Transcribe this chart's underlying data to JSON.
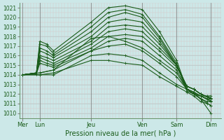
{
  "xlabel": "Pression niveau de la mer( hPa )",
  "bg_color": "#cce8e8",
  "line_color": "#1a5c1a",
  "ylim": [
    1009.5,
    1021.5
  ],
  "yticks": [
    1010,
    1011,
    1012,
    1013,
    1014,
    1015,
    1016,
    1017,
    1018,
    1019,
    1020,
    1021
  ],
  "day_labels": [
    "Mer",
    "Lun",
    "Jeu",
    "Ven",
    "Sam",
    "Dim"
  ],
  "day_positions": [
    0,
    0.5,
    2.0,
    3.5,
    4.5,
    5.5
  ],
  "xlim": [
    -0.1,
    5.8
  ],
  "lines": [
    {
      "x": [
        0.0,
        0.4,
        0.5,
        0.7,
        0.9,
        2.0,
        2.5,
        3.0,
        3.5,
        4.0,
        4.5,
        4.8,
        5.0,
        5.2,
        5.5
      ],
      "y": [
        1014.0,
        1014.2,
        1017.5,
        1017.2,
        1016.5,
        1019.5,
        1021.0,
        1021.2,
        1020.8,
        1018.5,
        1015.5,
        1012.5,
        1012.2,
        1011.5,
        1010.0
      ]
    },
    {
      "x": [
        0.0,
        0.4,
        0.5,
        0.7,
        0.9,
        2.0,
        2.5,
        3.0,
        3.5,
        4.0,
        4.5,
        4.8,
        5.0,
        5.2,
        5.5
      ],
      "y": [
        1014.0,
        1014.2,
        1017.2,
        1017.0,
        1016.2,
        1019.0,
        1020.5,
        1020.8,
        1020.3,
        1018.0,
        1015.2,
        1012.3,
        1012.0,
        1011.5,
        1010.8
      ]
    },
    {
      "x": [
        0.0,
        0.4,
        0.5,
        0.7,
        0.9,
        2.0,
        2.5,
        3.0,
        3.5,
        4.0,
        4.5,
        4.8,
        5.0,
        5.2,
        5.5
      ],
      "y": [
        1014.0,
        1014.2,
        1016.8,
        1016.5,
        1016.0,
        1018.5,
        1020.0,
        1020.5,
        1020.0,
        1017.8,
        1015.0,
        1012.5,
        1012.2,
        1011.8,
        1011.2
      ]
    },
    {
      "x": [
        0.0,
        0.4,
        0.5,
        0.7,
        0.9,
        2.0,
        2.5,
        3.0,
        3.5,
        4.0,
        4.5,
        4.8,
        5.0,
        5.2,
        5.5
      ],
      "y": [
        1014.0,
        1014.2,
        1016.5,
        1016.2,
        1015.8,
        1018.0,
        1019.5,
        1019.8,
        1019.5,
        1017.5,
        1015.0,
        1012.8,
        1012.5,
        1012.0,
        1011.6
      ]
    },
    {
      "x": [
        0.0,
        0.4,
        0.5,
        0.7,
        0.9,
        2.0,
        2.5,
        3.0,
        3.5,
        4.0,
        4.5,
        4.8,
        5.0,
        5.2,
        5.5
      ],
      "y": [
        1014.0,
        1014.2,
        1016.0,
        1015.8,
        1015.5,
        1017.5,
        1019.0,
        1019.2,
        1019.0,
        1017.2,
        1015.0,
        1012.8,
        1012.5,
        1012.0,
        1011.5
      ]
    },
    {
      "x": [
        0.0,
        0.4,
        0.5,
        0.7,
        0.9,
        2.0,
        2.5,
        3.0,
        3.5,
        4.0,
        4.5,
        4.8,
        5.0,
        5.2,
        5.5
      ],
      "y": [
        1014.0,
        1014.2,
        1015.8,
        1015.5,
        1015.2,
        1017.2,
        1018.5,
        1018.8,
        1018.5,
        1016.8,
        1015.0,
        1012.8,
        1012.5,
        1012.0,
        1011.5
      ]
    },
    {
      "x": [
        0.0,
        0.4,
        0.5,
        0.7,
        0.9,
        2.0,
        2.5,
        3.0,
        3.5,
        4.0,
        4.5,
        4.8,
        5.0,
        5.2,
        5.5
      ],
      "y": [
        1014.0,
        1014.1,
        1015.5,
        1015.2,
        1015.0,
        1016.8,
        1018.0,
        1018.2,
        1018.0,
        1016.5,
        1014.8,
        1012.8,
        1012.5,
        1012.0,
        1011.5
      ]
    },
    {
      "x": [
        0.0,
        0.4,
        0.5,
        0.7,
        0.9,
        2.0,
        2.5,
        3.0,
        3.5,
        4.0,
        4.5,
        4.8,
        5.0,
        5.2,
        5.5
      ],
      "y": [
        1014.0,
        1014.1,
        1015.2,
        1015.0,
        1014.8,
        1016.5,
        1017.5,
        1017.8,
        1017.5,
        1016.0,
        1014.5,
        1012.5,
        1012.2,
        1011.8,
        1011.3
      ]
    },
    {
      "x": [
        0.0,
        0.5,
        0.9,
        2.0,
        2.5,
        3.0,
        3.5,
        4.0,
        4.5,
        4.8,
        5.0,
        5.2,
        5.4,
        5.5
      ],
      "y": [
        1014.0,
        1014.2,
        1014.5,
        1017.8,
        1018.0,
        1017.5,
        1016.8,
        1015.5,
        1014.2,
        1012.5,
        1012.0,
        1011.8,
        1011.8,
        1011.8
      ]
    },
    {
      "x": [
        0.0,
        0.5,
        0.9,
        2.0,
        2.5,
        3.0,
        3.5,
        4.0,
        4.5,
        4.8,
        5.0,
        5.2,
        5.4,
        5.5
      ],
      "y": [
        1014.0,
        1014.2,
        1014.5,
        1016.5,
        1017.0,
        1017.2,
        1016.5,
        1015.2,
        1013.8,
        1012.5,
        1012.0,
        1011.8,
        1011.5,
        1011.5
      ]
    },
    {
      "x": [
        0.0,
        0.5,
        0.9,
        2.0,
        2.5,
        3.0,
        3.5,
        4.0,
        4.5,
        4.8,
        5.0,
        5.2,
        5.4,
        5.5
      ],
      "y": [
        1014.0,
        1014.0,
        1014.2,
        1015.5,
        1015.5,
        1015.2,
        1015.0,
        1013.8,
        1012.8,
        1012.2,
        1011.8,
        1011.2,
        1011.0,
        1010.8
      ]
    },
    {
      "x": [
        0.0,
        0.5,
        0.9,
        2.0,
        2.5,
        3.0,
        3.5,
        4.0,
        4.5,
        4.8,
        5.0,
        5.2,
        5.4,
        5.5
      ],
      "y": [
        1014.0,
        1014.0,
        1014.0,
        1016.0,
        1016.2,
        1016.0,
        1015.5,
        1014.2,
        1013.0,
        1012.5,
        1012.0,
        1011.5,
        1011.2,
        1011.2
      ]
    }
  ],
  "grid_major_color": "#b8c8c8",
  "grid_minor_color": "#d8c8c8",
  "tick_color": "#1a5c1a",
  "spine_color": "#558855"
}
